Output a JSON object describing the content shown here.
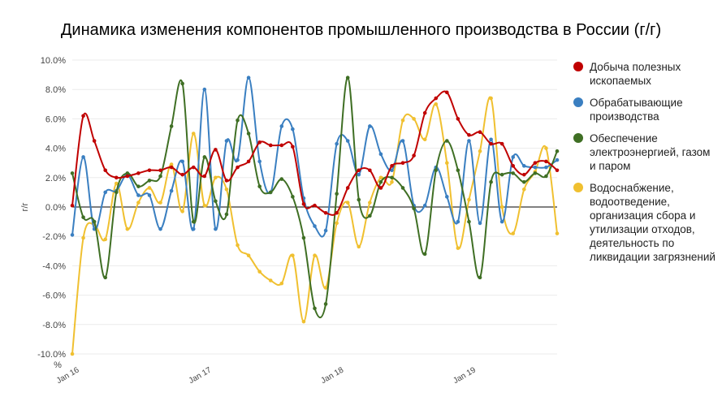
{
  "chart_data": {
    "type": "line",
    "title": "Динамика изменения компонентов промышленного производства в России (г/г)",
    "ylabel": "г/г",
    "ylim": [
      -10,
      10
    ],
    "yticks": [
      "10.0%",
      "8.0%",
      "6.0%",
      "4.0%",
      "2.0%",
      "0.0%",
      "-2.0%",
      "-4.0%",
      "-6.0%",
      "-8.0%",
      "-10.0%"
    ],
    "y_bottom_unit": "%",
    "xtick_labels": [
      {
        "label": "Jan 16",
        "index": 0
      },
      {
        "label": "Jan 17",
        "index": 12
      },
      {
        "label": "Jan 18",
        "index": 24
      },
      {
        "label": "Jan 19",
        "index": 36
      }
    ],
    "legend_position": "right",
    "grid": true,
    "series": [
      {
        "name": "Добыча полезных ископаемых",
        "color": "#c00000",
        "values": [
          0.1,
          6.2,
          4.5,
          2.5,
          2.0,
          2.1,
          2.3,
          2.5,
          2.5,
          2.7,
          2.2,
          2.7,
          2.1,
          3.9,
          1.8,
          2.7,
          3.1,
          4.4,
          4.2,
          4.2,
          4.1,
          0.2,
          0.1,
          -0.4,
          -0.4,
          1.3,
          2.5,
          2.5,
          1.3,
          2.8,
          3.0,
          3.5,
          6.4,
          7.4,
          7.8,
          6.0,
          4.9,
          5.1,
          4.3,
          4.3,
          2.8,
          2.2,
          3.0,
          3.1,
          2.5
        ]
      },
      {
        "name": "Обрабатывающие производства",
        "color": "#3a7fc1",
        "values": [
          -1.9,
          3.4,
          -1.5,
          1.0,
          1.1,
          2.2,
          0.8,
          0.8,
          -1.5,
          1.1,
          3.1,
          -1.5,
          8.0,
          -1.5,
          4.5,
          3.2,
          8.8,
          3.1,
          1.0,
          5.5,
          5.3,
          0.6,
          -1.3,
          -1.6,
          4.3,
          4.5,
          2.2,
          5.5,
          3.6,
          2.5,
          4.5,
          0.1,
          0.1,
          2.7,
          0.7,
          -1.0,
          4.5,
          -1.1,
          4.6,
          -1.0,
          3.4,
          2.8,
          2.7,
          2.7,
          3.2
        ]
      },
      {
        "name": "Обеспечение электроэнергией, газом и паром",
        "color": "#3f6f24",
        "values": [
          2.3,
          -0.7,
          -1.0,
          -4.8,
          1.0,
          2.3,
          1.4,
          1.8,
          2.1,
          5.5,
          8.4,
          -1.0,
          3.4,
          0.4,
          -0.5,
          5.9,
          5.0,
          1.4,
          1.0,
          1.9,
          0.7,
          -2.1,
          -6.9,
          -6.6,
          0.9,
          8.8,
          0.5,
          -0.6,
          1.7,
          2.0,
          1.3,
          -0.1,
          -3.2,
          2.5,
          4.5,
          2.5,
          -1.0,
          -4.8,
          1.7,
          2.2,
          2.3,
          1.7,
          2.3,
          2.1,
          3.8
        ]
      },
      {
        "name": "Водоснабжение, водоотведение, организация сбора и утилизации отходов, деятельность по ликвидации загрязнений",
        "color": "#f0c030",
        "values": [
          -10.0,
          -2.1,
          -1.2,
          -2.2,
          1.6,
          -1.5,
          0.3,
          1.3,
          0.3,
          2.9,
          -0.3,
          5.0,
          0.1,
          2.0,
          1.2,
          -2.6,
          -3.3,
          -4.4,
          -5.0,
          -5.2,
          -3.3,
          -7.8,
          -3.3,
          -5.5,
          -1.1,
          0.3,
          -2.7,
          0.3,
          2.0,
          1.7,
          5.9,
          6.0,
          4.6,
          7.0,
          3.0,
          -2.8,
          0.5,
          3.8,
          7.4,
          0.0,
          -1.8,
          1.2,
          2.4,
          4.0,
          -1.8
        ]
      }
    ]
  }
}
